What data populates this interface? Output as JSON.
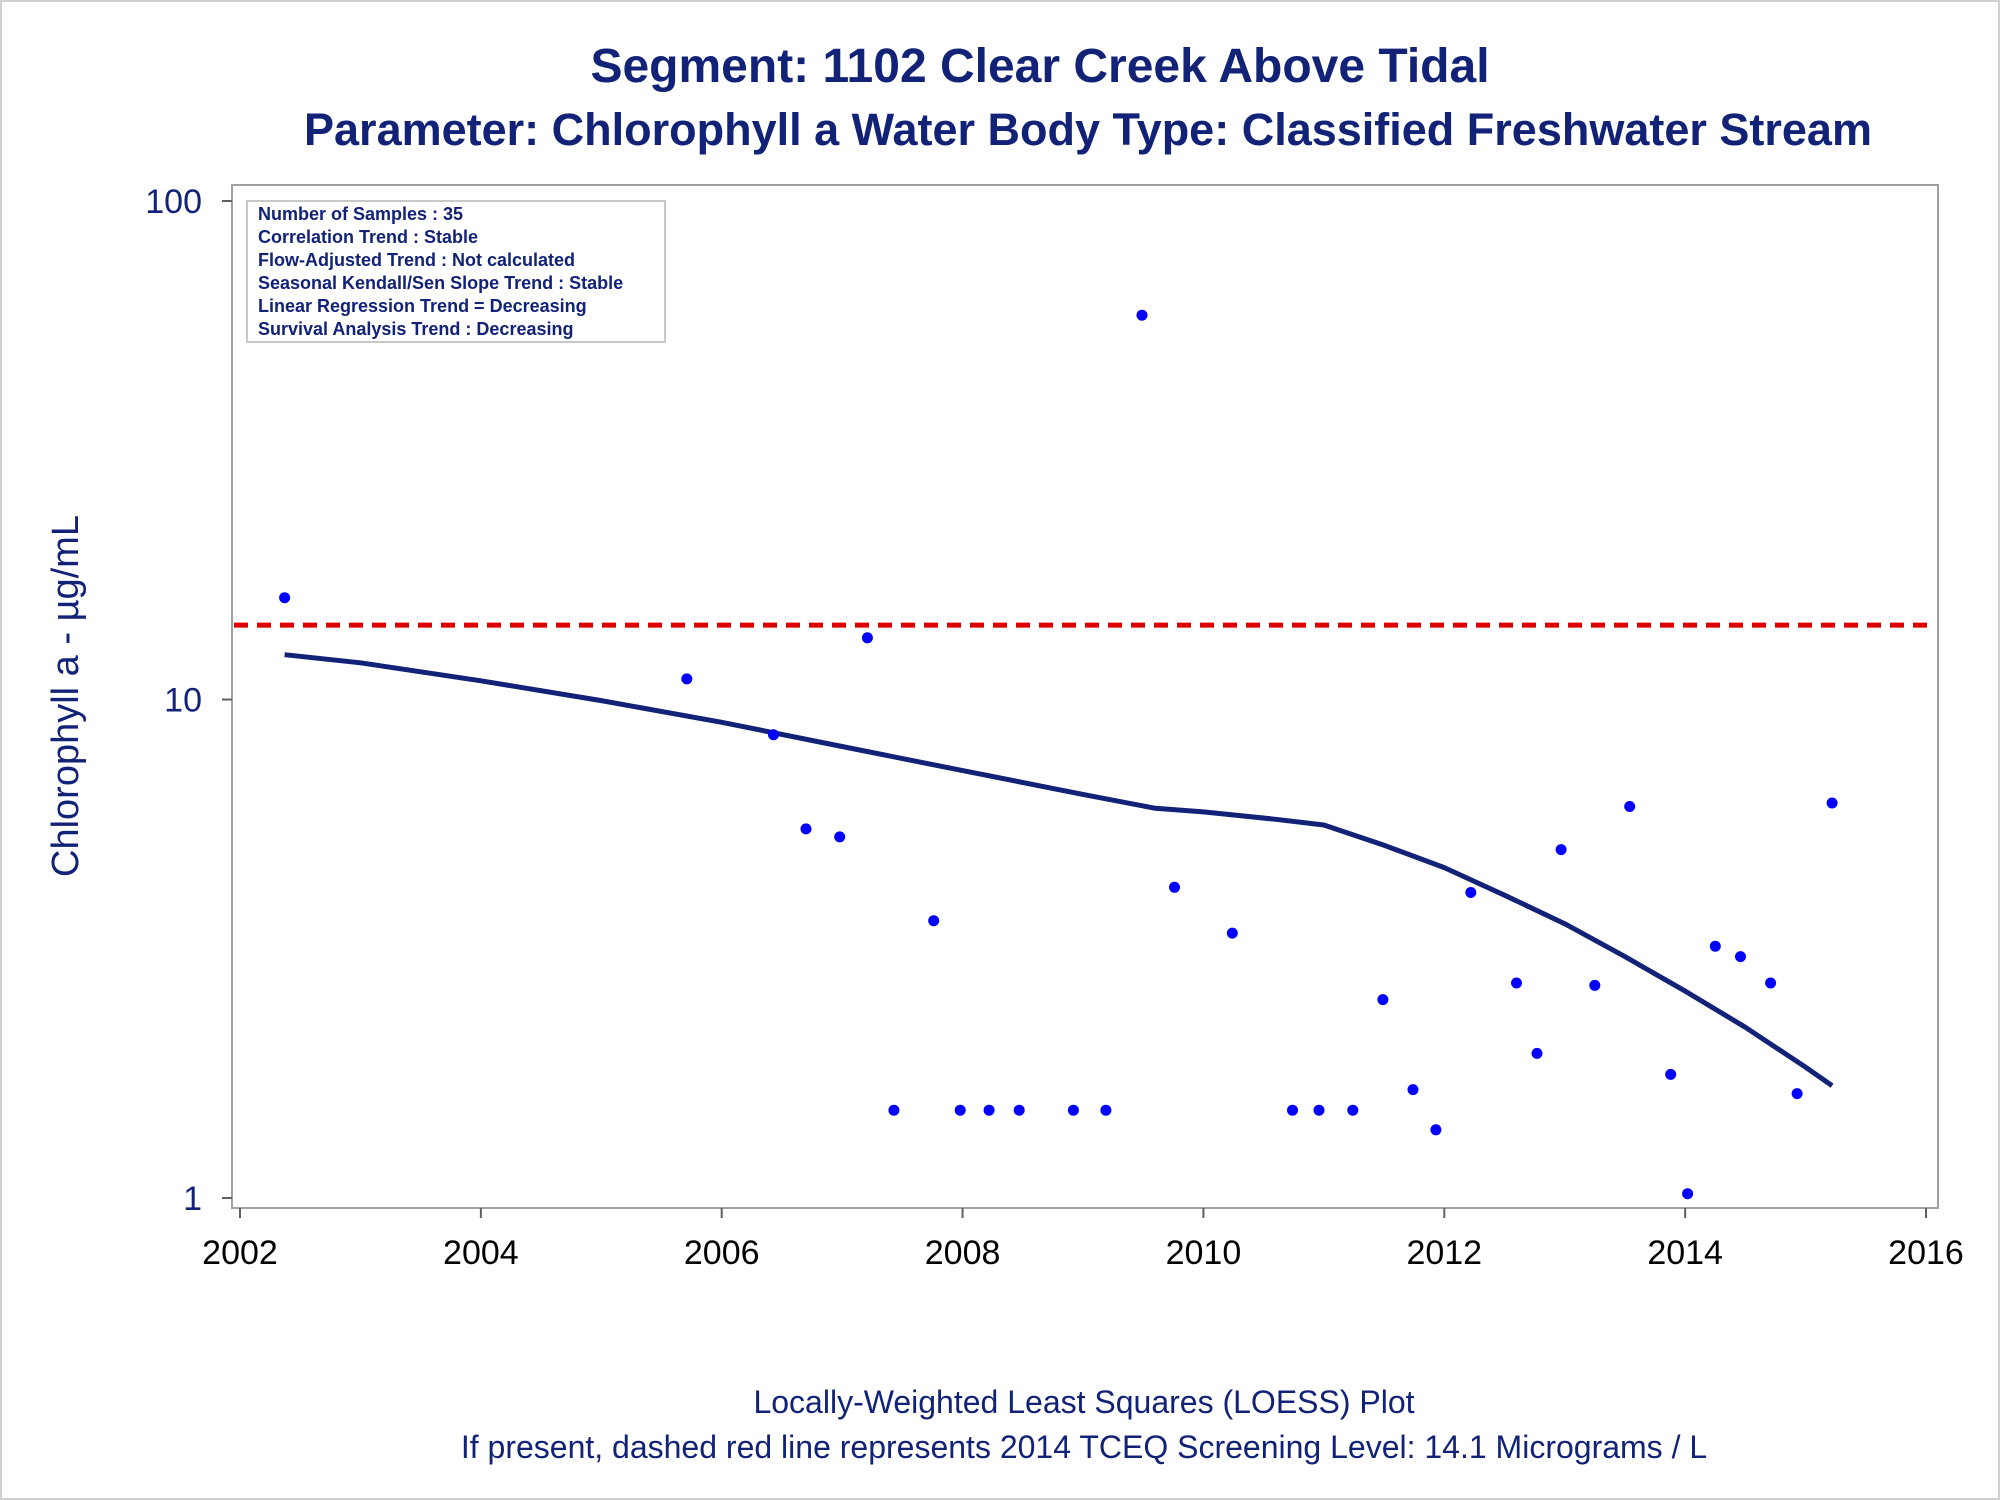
{
  "chart_data": {
    "type": "scatter",
    "title": "Segment: 1102  Clear Creek Above Tidal",
    "subtitle": "Parameter: Chlorophyll a   Water Body Type: Classified Freshwater Stream",
    "xlabel": "",
    "ylabel": "Chlorophyll a -  µg/mL",
    "y_scale": "log",
    "xlim": [
      2002,
      2016
    ],
    "ylim": [
      1,
      100
    ],
    "x_ticks": [
      "2002",
      "2004",
      "2006",
      "2008",
      "2010",
      "2012",
      "2014",
      "2016"
    ],
    "x_tick_values": [
      2002,
      2004,
      2006,
      2008,
      2010,
      2012,
      2014,
      2016
    ],
    "y_ticks": [
      "1",
      "10",
      "100"
    ],
    "y_tick_values": [
      1,
      10,
      100
    ],
    "grid": false,
    "colors": {
      "points": "#0000ff",
      "loess": "#112277",
      "screening": "#dd0000",
      "text": "#112277"
    },
    "points": {
      "x": [
        2002.37,
        2005.71,
        2006.43,
        2006.7,
        2006.98,
        2007.21,
        2007.43,
        2007.76,
        2007.98,
        2008.22,
        2008.47,
        2008.92,
        2009.19,
        2009.49,
        2009.76,
        2010.24,
        2010.74,
        2010.96,
        2011.24,
        2011.49,
        2011.74,
        2011.93,
        2012.22,
        2012.6,
        2012.77,
        2012.97,
        2013.25,
        2013.54,
        2013.88,
        2014.02,
        2014.25,
        2014.46,
        2014.71,
        2014.93,
        2015.22
      ],
      "y": [
        16.0,
        11.0,
        8.5,
        5.5,
        5.3,
        13.3,
        1.5,
        3.6,
        1.5,
        1.5,
        1.5,
        1.5,
        1.5,
        59.0,
        4.2,
        3.4,
        1.5,
        1.5,
        1.5,
        2.5,
        1.65,
        1.37,
        4.1,
        2.7,
        1.95,
        5.0,
        2.67,
        6.1,
        1.77,
        1.02,
        3.2,
        3.05,
        2.7,
        1.62,
        6.2
      ]
    },
    "loess": {
      "x": [
        2002.37,
        2003,
        2004,
        2005,
        2006,
        2007,
        2008,
        2009,
        2009.6,
        2010,
        2010.6,
        2011,
        2011.5,
        2012,
        2012.5,
        2013,
        2013.5,
        2014,
        2014.5,
        2015,
        2015.22
      ],
      "y": [
        12.3,
        11.85,
        10.9,
        9.95,
        9.0,
        8.05,
        7.2,
        6.45,
        6.05,
        5.95,
        5.75,
        5.6,
        5.1,
        4.6,
        4.05,
        3.55,
        3.05,
        2.6,
        2.2,
        1.83,
        1.68
      ]
    },
    "screening_level": 14.1,
    "inset": [
      "Number of Samples : 35",
      "Correlation Trend : Stable",
      "Flow-Adjusted Trend : Not calculated",
      "Seasonal Kendall/Sen Slope Trend : Stable",
      "Linear Regression Trend = Decreasing",
      "Survival Analysis Trend : Decreasing"
    ]
  },
  "footer": {
    "line1": "Locally-Weighted Least Squares (LOESS) Plot",
    "line2": "If present, dashed red line represents 2014 TCEQ Screening Level: 14.1 Micrograms / L"
  }
}
